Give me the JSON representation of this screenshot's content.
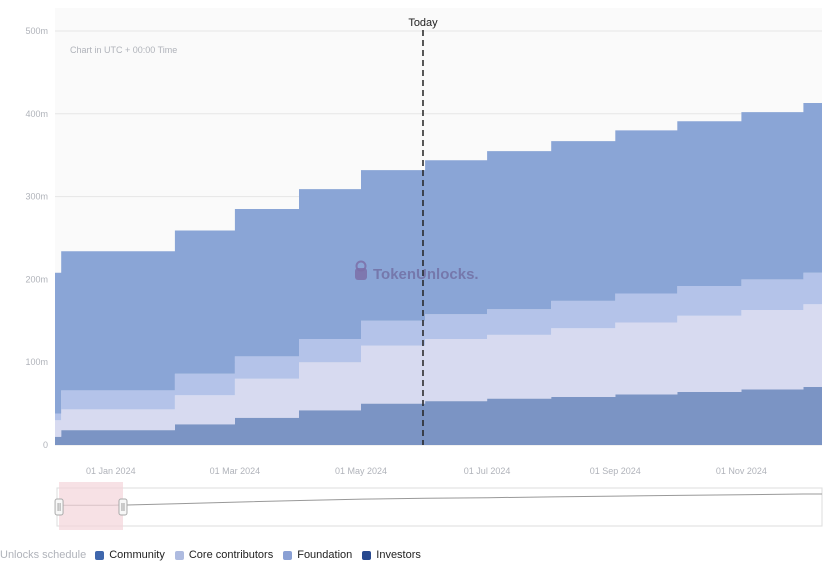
{
  "chart_data": {
    "type": "area",
    "stacked": true,
    "step": true,
    "note": "Chart in UTC + 00:00 Time",
    "watermark": "TokenUnlocks.",
    "today_label": "Today",
    "today_date": "2024-05-31",
    "x_range": [
      "2023-12-05",
      "2024-12-10"
    ],
    "ylim": [
      0,
      500
    ],
    "y_ticks": [
      0,
      100,
      200,
      300,
      400,
      500
    ],
    "y_tick_labels": [
      "0",
      "100m",
      "200m",
      "300m",
      "400m",
      "500m"
    ],
    "x_ticks": [
      "2024-01-01",
      "2024-03-01",
      "2024-05-01",
      "2024-07-01",
      "2024-09-01",
      "2024-11-01"
    ],
    "x_tick_labels": [
      "01 Jan 2024",
      "01 Mar 2024",
      "01 May 2024",
      "01 Jul 2024",
      "01 Sep 2024",
      "01 Nov 2024"
    ],
    "dates": [
      "2023-12-05",
      "2023-12-08",
      "2024-01-01",
      "2024-02-01",
      "2024-03-01",
      "2024-04-01",
      "2024-05-01",
      "2024-06-01",
      "2024-07-01",
      "2024-08-01",
      "2024-09-01",
      "2024-10-01",
      "2024-11-01",
      "2024-12-01"
    ],
    "series": [
      {
        "name": "Community",
        "values": [
          10,
          18,
          18,
          25,
          33,
          42,
          50,
          53,
          56,
          58,
          61,
          64,
          67,
          70
        ]
      },
      {
        "name": "Core contributors",
        "values": [
          20,
          25,
          25,
          35,
          47,
          58,
          70,
          75,
          77,
          83,
          87,
          92,
          96,
          100
        ]
      },
      {
        "name": "Foundation",
        "values": [
          8,
          23,
          23,
          26,
          27,
          28,
          30,
          30,
          31,
          33,
          35,
          36,
          37,
          38
        ]
      },
      {
        "name": "Investors",
        "values": [
          170,
          168,
          168,
          173,
          178,
          181,
          182,
          186,
          191,
          193,
          197,
          199,
          202,
          205
        ]
      }
    ],
    "legend_title": "Unlocks schedule",
    "navigator": {
      "selection_start": "2023-12-06",
      "selection_end": "2024-01-06"
    }
  },
  "colors": {
    "Community": "#7b94c4",
    "Core contributors": "#d7daf0",
    "Foundation": "#b4c3e9",
    "Investors": "#8aa5d6",
    "legend_Community": "#3f67ad",
    "legend_Core contributors": "#aebbe0",
    "legend_Foundation": "#8aa0d4",
    "legend_Investors": "#27488e",
    "today_line": "#222222",
    "selection": "#f3d4da"
  }
}
